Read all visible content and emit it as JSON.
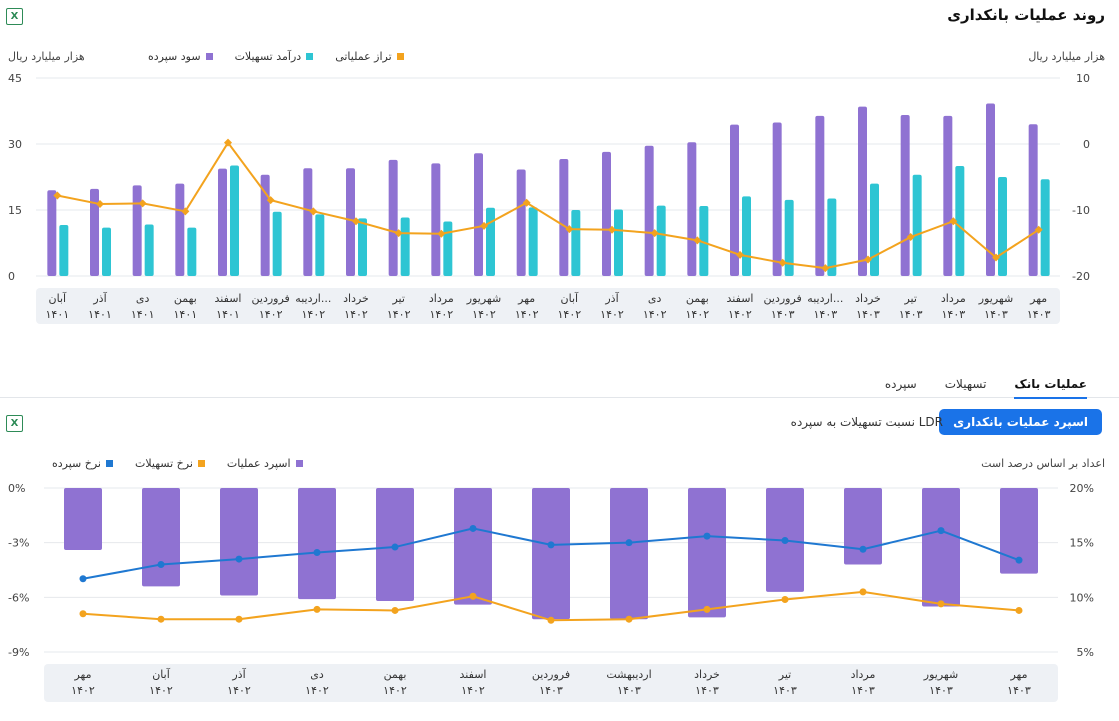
{
  "header": {
    "title": "روند عملیات بانکداری",
    "excel_icon": "excel-icon"
  },
  "tabs": [
    {
      "label": "عملیات بانک",
      "active": true
    },
    {
      "label": "تسهیلات",
      "active": false
    },
    {
      "label": "سپرده",
      "active": false
    }
  ],
  "bottom_header": {
    "button_label": "اسپرد عملیات بانکداری",
    "ratio_label": "نسبت تسهیلات به سپرده LDR"
  },
  "colors": {
    "purple": "#8f72d2",
    "cyan": "#2ec5d3",
    "orange": "#f3a31e",
    "blue": "#1f78d1"
  },
  "chart_data": [
    {
      "type": "bar",
      "left_unit": "هزار میلیارد ریال",
      "right_unit": "هزار میلیارد ریال",
      "left_ticks": [
        "45",
        "30",
        "15",
        "0"
      ],
      "right_ticks": [
        "10",
        "0",
        "-10",
        "-20"
      ],
      "ylim_left": [
        0,
        45
      ],
      "ylim_right": [
        -20,
        10
      ],
      "categories": [
        {
          "m": "مهر",
          "y": "۱۴۰۳"
        },
        {
          "m": "شهریور",
          "y": "۱۴۰۳"
        },
        {
          "m": "مرداد",
          "y": "۱۴۰۳"
        },
        {
          "m": "تیر",
          "y": "۱۴۰۳"
        },
        {
          "m": "خرداد",
          "y": "۱۴۰۳"
        },
        {
          "m": "اردیبه...",
          "y": "۱۴۰۳"
        },
        {
          "m": "فروردین",
          "y": "۱۴۰۳"
        },
        {
          "m": "اسفند",
          "y": "۱۴۰۲"
        },
        {
          "m": "بهمن",
          "y": "۱۴۰۲"
        },
        {
          "m": "دی",
          "y": "۱۴۰۲"
        },
        {
          "m": "آذر",
          "y": "۱۴۰۲"
        },
        {
          "m": "آبان",
          "y": "۱۴۰۲"
        },
        {
          "m": "مهر",
          "y": "۱۴۰۲"
        },
        {
          "m": "شهریور",
          "y": "۱۴۰۲"
        },
        {
          "m": "مرداد",
          "y": "۱۴۰۲"
        },
        {
          "m": "تیر",
          "y": "۱۴۰۲"
        },
        {
          "m": "خرداد",
          "y": "۱۴۰۲"
        },
        {
          "m": "اردیبه...",
          "y": "۱۴۰۲"
        },
        {
          "m": "فروردین",
          "y": "۱۴۰۲"
        },
        {
          "m": "اسفند",
          "y": "۱۴۰۱"
        },
        {
          "m": "بهمن",
          "y": "۱۴۰۱"
        },
        {
          "m": "دی",
          "y": "۱۴۰۱"
        },
        {
          "m": "آذر",
          "y": "۱۴۰۱"
        },
        {
          "m": "آبان",
          "y": "۱۴۰۱"
        }
      ],
      "series": [
        {
          "name": "سود سپرده",
          "color": "#8f72d2",
          "axis": "left",
          "kind": "bar",
          "values": [
            34.5,
            39.2,
            36.4,
            36.6,
            38.5,
            36.4,
            34.9,
            34.4,
            30.4,
            29.6,
            28.2,
            26.6,
            24.2,
            27.9,
            25.6,
            26.4,
            24.5,
            24.5,
            23.0,
            24.4,
            21.0,
            20.6,
            19.8,
            19.5
          ]
        },
        {
          "name": "درآمد تسهیلات",
          "color": "#2ec5d3",
          "axis": "left",
          "kind": "bar",
          "values": [
            22.0,
            22.5,
            25.0,
            23.0,
            21.0,
            17.6,
            17.3,
            18.1,
            15.9,
            16.0,
            15.1,
            15.0,
            15.6,
            15.5,
            12.4,
            13.3,
            13.1,
            14.0,
            14.6,
            25.1,
            11.0,
            11.7,
            11.0,
            11.6
          ]
        },
        {
          "name": "تراز عملیاتی",
          "color": "#f3a31e",
          "axis": "right",
          "kind": "line",
          "values": [
            -13.0,
            -17.2,
            -11.7,
            -14.1,
            -17.5,
            -18.8,
            -18.0,
            -16.8,
            -14.6,
            -13.5,
            -13.0,
            -12.9,
            -8.9,
            -12.4,
            -13.6,
            -13.5,
            -11.7,
            -10.2,
            -8.5,
            0.2,
            -10.2,
            -9.0,
            -9.1,
            -7.8
          ]
        }
      ]
    },
    {
      "type": "bar",
      "axis_note": "اعداد بر اساس درصد است",
      "left_ticks": [
        "0%",
        "-3%",
        "-6%",
        "-9%"
      ],
      "right_ticks": [
        "20%",
        "15%",
        "10%",
        "5%"
      ],
      "ylim_left": [
        -9,
        0
      ],
      "ylim_right": [
        5,
        20
      ],
      "categories": [
        {
          "m": "مهر",
          "y": "۱۴۰۳"
        },
        {
          "m": "شهریور",
          "y": "۱۴۰۳"
        },
        {
          "m": "مرداد",
          "y": "۱۴۰۳"
        },
        {
          "m": "تیر",
          "y": "۱۴۰۳"
        },
        {
          "m": "خرداد",
          "y": "۱۴۰۳"
        },
        {
          "m": "اردیبهشت",
          "y": "۱۴۰۳"
        },
        {
          "m": "فروردین",
          "y": "۱۴۰۳"
        },
        {
          "m": "اسفند",
          "y": "۱۴۰۲"
        },
        {
          "m": "بهمن",
          "y": "۱۴۰۲"
        },
        {
          "m": "دی",
          "y": "۱۴۰۲"
        },
        {
          "m": "آذر",
          "y": "۱۴۰۲"
        },
        {
          "m": "آبان",
          "y": "۱۴۰۲"
        },
        {
          "m": "مهر",
          "y": "۱۴۰۲"
        }
      ],
      "series": [
        {
          "name": "اسپرد عملیات",
          "color": "#8f72d2",
          "axis": "left",
          "kind": "bar",
          "values": [
            -4.7,
            -6.5,
            -4.2,
            -5.7,
            -7.1,
            -7.2,
            -7.2,
            -6.4,
            -6.2,
            -6.1,
            -5.9,
            -5.4,
            -3.4
          ]
        },
        {
          "name": "نرخ تسهیلات",
          "color": "#f3a31e",
          "axis": "right",
          "kind": "line",
          "values": [
            8.8,
            9.4,
            10.5,
            9.8,
            8.9,
            8.0,
            7.9,
            10.1,
            8.8,
            8.9,
            8.0,
            8.0,
            8.5
          ]
        },
        {
          "name": "نرخ سپرده",
          "color": "#1f78d1",
          "axis": "right",
          "kind": "line",
          "values": [
            13.4,
            16.1,
            14.4,
            15.2,
            15.6,
            15.0,
            14.8,
            16.3,
            14.6,
            14.1,
            13.5,
            13.0,
            11.7
          ]
        }
      ]
    }
  ]
}
